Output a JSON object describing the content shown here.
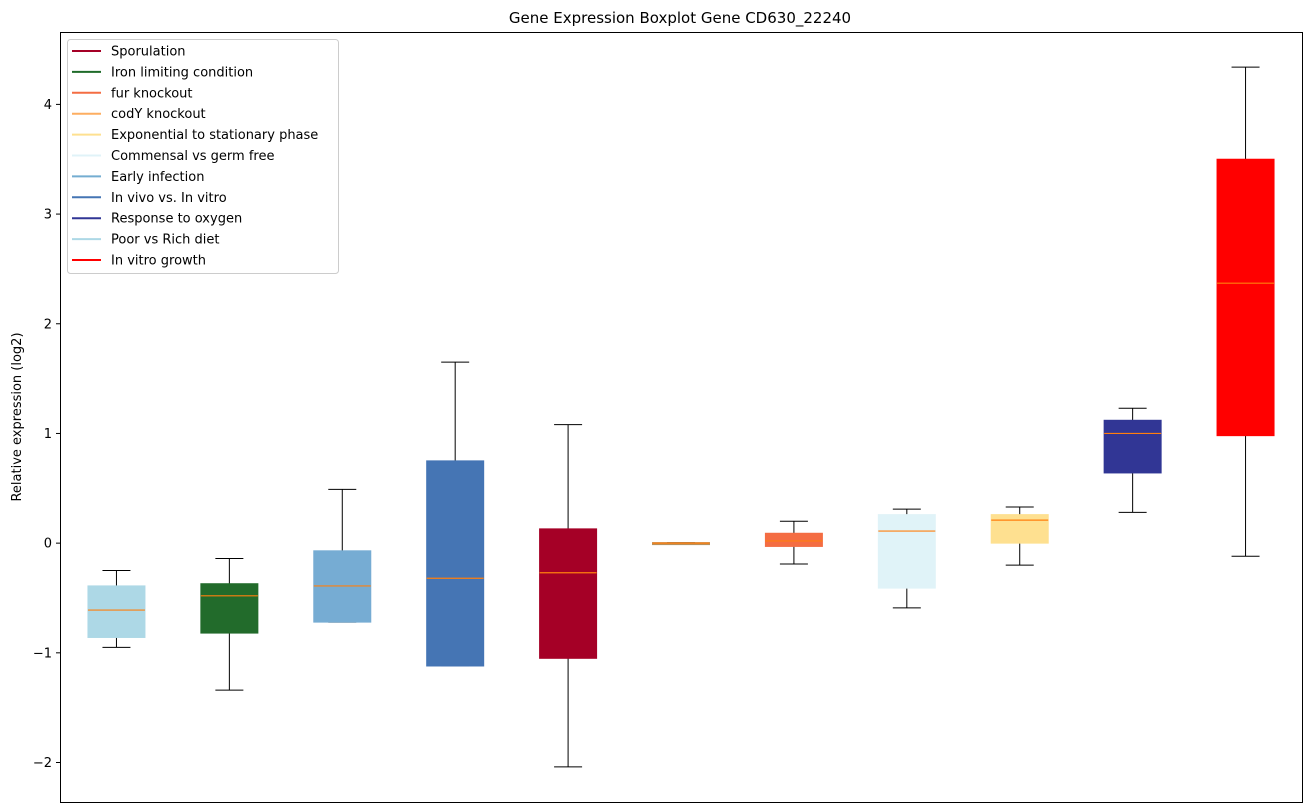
{
  "chart_data": {
    "type": "boxplot",
    "title": "Gene Expression Boxplot Gene CD630_22240",
    "xlabel": "",
    "ylabel": "Relative expression (log2)",
    "ylim": [
      -2.36,
      4.66
    ],
    "yticks": [
      -2,
      -1,
      0,
      1,
      2,
      3,
      4
    ],
    "ytick_labels": [
      "−2",
      "−1",
      "0",
      "1",
      "2",
      "3",
      "4"
    ],
    "grid": false,
    "legend_position": "top-left",
    "median_color": "#ff7f0e",
    "legend": [
      {
        "label": "Sporulation",
        "color": "#a50026"
      },
      {
        "label": "Iron limiting condition",
        "color": "#1f6b2a"
      },
      {
        "label": "fur knockout",
        "color": "#f46d43"
      },
      {
        "label": "codY knockout",
        "color": "#fdae61"
      },
      {
        "label": "Exponential to stationary phase",
        "color": "#fee090"
      },
      {
        "label": "Commensal vs germ free",
        "color": "#e0f3f8"
      },
      {
        "label": "Early infection",
        "color": "#74add1"
      },
      {
        "label": "In vivo vs. In vitro",
        "color": "#4575b4"
      },
      {
        "label": "Response to oxygen",
        "color": "#313695"
      },
      {
        "label": "Poor vs Rich diet",
        "color": "#add8e6"
      },
      {
        "label": "In vitro growth",
        "color": "#ff0000"
      }
    ],
    "boxes": [
      {
        "name": "Poor vs Rich diet",
        "color": "#add8e6",
        "whislo": -0.95,
        "q1": -0.86,
        "med": -0.61,
        "q3": -0.39,
        "whishi": -0.25
      },
      {
        "name": "Iron limiting condition",
        "color": "#226b2b",
        "whislo": -1.34,
        "q1": -0.82,
        "med": -0.48,
        "q3": -0.37,
        "whishi": -0.14
      },
      {
        "name": "Early infection",
        "color": "#76acd3",
        "whislo": -0.72,
        "q1": -0.72,
        "med": -0.39,
        "q3": -0.07,
        "whishi": 0.49
      },
      {
        "name": "In vivo vs. In vitro",
        "color": "#4575b4",
        "whislo": -1.12,
        "q1": -1.12,
        "med": -0.32,
        "q3": 0.75,
        "whishi": 1.65
      },
      {
        "name": "Sporulation",
        "color": "#a50026",
        "whislo": -2.04,
        "q1": -1.05,
        "med": -0.27,
        "q3": 0.13,
        "whishi": 1.08
      },
      {
        "name": "codY knockout",
        "color": "#b8905a",
        "whislo": -0.005,
        "q1": -0.005,
        "med": 0.0,
        "q3": 0.005,
        "whishi": 0.005
      },
      {
        "name": "fur knockout",
        "color": "#f46d43",
        "whislo": -0.19,
        "q1": -0.03,
        "med": 0.02,
        "q3": 0.09,
        "whishi": 0.2
      },
      {
        "name": "Commensal vs germ free",
        "color": "#e0f3f8",
        "whislo": -0.59,
        "q1": -0.41,
        "med": 0.11,
        "q3": 0.26,
        "whishi": 0.31
      },
      {
        "name": "Exponential to stationary phase",
        "color": "#fee090",
        "whislo": -0.2,
        "q1": 0.0,
        "med": 0.21,
        "q3": 0.26,
        "whishi": 0.33
      },
      {
        "name": "Response to oxygen",
        "color": "#313695",
        "whislo": 0.28,
        "q1": 0.64,
        "med": 1.0,
        "q3": 1.12,
        "whishi": 1.23
      },
      {
        "name": "In vitro growth",
        "color": "#ff0000",
        "whislo": -0.12,
        "q1": 0.98,
        "med": 2.37,
        "q3": 3.5,
        "whishi": 4.34
      }
    ]
  }
}
